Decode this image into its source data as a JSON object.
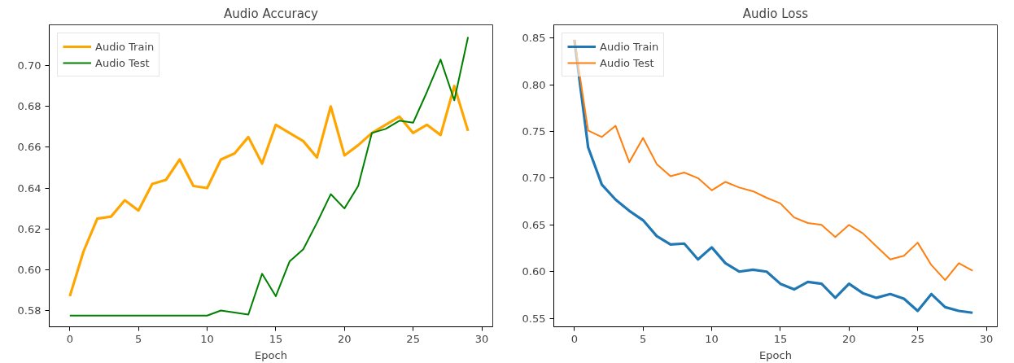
{
  "chart_data": [
    {
      "type": "line",
      "title": "Audio Accuracy",
      "xlabel": "Epoch",
      "x": [
        0,
        1,
        2,
        3,
        4,
        5,
        6,
        7,
        8,
        9,
        10,
        11,
        12,
        13,
        14,
        15,
        16,
        17,
        18,
        19,
        20,
        21,
        22,
        23,
        24,
        25,
        26,
        27,
        28,
        29
      ],
      "series": [
        {
          "name": "Audio Train",
          "color": "#ffa500",
          "values": [
            0.587,
            0.609,
            0.625,
            0.626,
            0.634,
            0.629,
            0.642,
            0.644,
            0.654,
            0.641,
            0.64,
            0.654,
            0.657,
            0.665,
            0.652,
            0.671,
            0.667,
            0.663,
            0.655,
            0.68,
            0.656,
            0.661,
            0.667,
            0.671,
            0.675,
            0.667,
            0.671,
            0.666,
            0.69,
            0.668
          ]
        },
        {
          "name": "Audio Test",
          "color": "#008000",
          "values": [
            0.5775,
            0.5775,
            0.5775,
            0.5775,
            0.5775,
            0.5775,
            0.5775,
            0.5775,
            0.5775,
            0.5775,
            0.5775,
            0.58,
            0.579,
            0.578,
            0.598,
            0.587,
            0.604,
            0.61,
            0.623,
            0.637,
            0.63,
            0.641,
            0.667,
            0.669,
            0.673,
            0.672,
            0.687,
            0.703,
            0.683,
            0.714
          ]
        }
      ],
      "xlim": [
        -1.5,
        30.8
      ],
      "xticks": [
        0,
        5,
        10,
        15,
        20,
        25,
        30
      ],
      "ylim": [
        0.572,
        0.72
      ],
      "yticks": [
        {
          "value": 0.58,
          "label": "0.58"
        },
        {
          "value": 0.6,
          "label": "0.60"
        },
        {
          "value": 0.62,
          "label": "0.62"
        },
        {
          "value": 0.64,
          "label": "0.64"
        },
        {
          "value": 0.66,
          "label": "0.66"
        },
        {
          "value": 0.68,
          "label": "0.68"
        },
        {
          "value": 0.7,
          "label": "0.70"
        }
      ],
      "legend": "top left",
      "grid": false
    },
    {
      "type": "line",
      "title": "Audio Loss",
      "xlabel": "Epoch",
      "x": [
        0,
        1,
        2,
        3,
        4,
        5,
        6,
        7,
        8,
        9,
        10,
        11,
        12,
        13,
        14,
        15,
        16,
        17,
        18,
        19,
        20,
        21,
        22,
        23,
        24,
        25,
        26,
        27,
        28,
        29
      ],
      "series": [
        {
          "name": "Audio Train",
          "color": "#1f77b4",
          "values": [
            0.848,
            0.733,
            0.693,
            0.677,
            0.665,
            0.655,
            0.638,
            0.629,
            0.63,
            0.613,
            0.626,
            0.609,
            0.6,
            0.602,
            0.6,
            0.587,
            0.581,
            0.589,
            0.587,
            0.572,
            0.587,
            0.577,
            0.572,
            0.576,
            0.571,
            0.558,
            0.576,
            0.562,
            0.558,
            0.556
          ]
        },
        {
          "name": "Audio Test",
          "color": "#ff7f0e",
          "values": [
            0.848,
            0.751,
            0.744,
            0.756,
            0.717,
            0.743,
            0.715,
            0.702,
            0.706,
            0.7,
            0.687,
            0.696,
            0.69,
            0.686,
            0.679,
            0.673,
            0.658,
            0.652,
            0.65,
            0.637,
            0.65,
            0.641,
            0.627,
            0.613,
            0.617,
            0.631,
            0.607,
            0.591,
            0.609,
            0.601
          ]
        }
      ],
      "xlim": [
        -1.5,
        30.8
      ],
      "xticks": [
        0,
        5,
        10,
        15,
        20,
        25,
        30
      ],
      "ylim": [
        0.541,
        0.864
      ],
      "yticks": [
        {
          "value": 0.55,
          "label": "0.55"
        },
        {
          "value": 0.6,
          "label": "0.60"
        },
        {
          "value": 0.65,
          "label": "0.65"
        },
        {
          "value": 0.7,
          "label": "0.70"
        },
        {
          "value": 0.75,
          "label": "0.75"
        },
        {
          "value": 0.8,
          "label": "0.80"
        },
        {
          "value": 0.85,
          "label": "0.85"
        }
      ],
      "legend": "top left",
      "grid": false
    }
  ]
}
